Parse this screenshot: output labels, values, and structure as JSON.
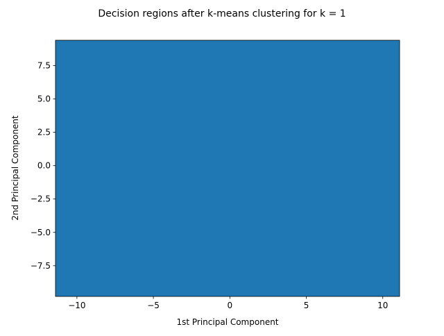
{
  "chart_data": {
    "type": "heatmap",
    "title": "Decision regions after k-means clustering for k = 1",
    "xlabel": "1st Principal Component",
    "ylabel": "2nd Principal Component",
    "xlim": [
      -11.4,
      11.1
    ],
    "ylim": [
      -9.8,
      9.4
    ],
    "xticks": [
      -10,
      -5,
      0,
      5,
      10
    ],
    "xtick_labels": [
      "−10",
      "−5",
      "0",
      "5",
      "10"
    ],
    "yticks": [
      -7.5,
      -5.0,
      -2.5,
      0.0,
      2.5,
      5.0,
      7.5
    ],
    "ytick_labels": [
      "−7.5",
      "−5.0",
      "−2.5",
      "0.0",
      "2.5",
      "5.0",
      "7.5"
    ],
    "grid": false,
    "regions": [
      {
        "cluster": 0,
        "x_range": [
          -11.4,
          11.1
        ],
        "y_range": [
          -9.8,
          9.4
        ],
        "color": "#1f77b4"
      }
    ]
  }
}
